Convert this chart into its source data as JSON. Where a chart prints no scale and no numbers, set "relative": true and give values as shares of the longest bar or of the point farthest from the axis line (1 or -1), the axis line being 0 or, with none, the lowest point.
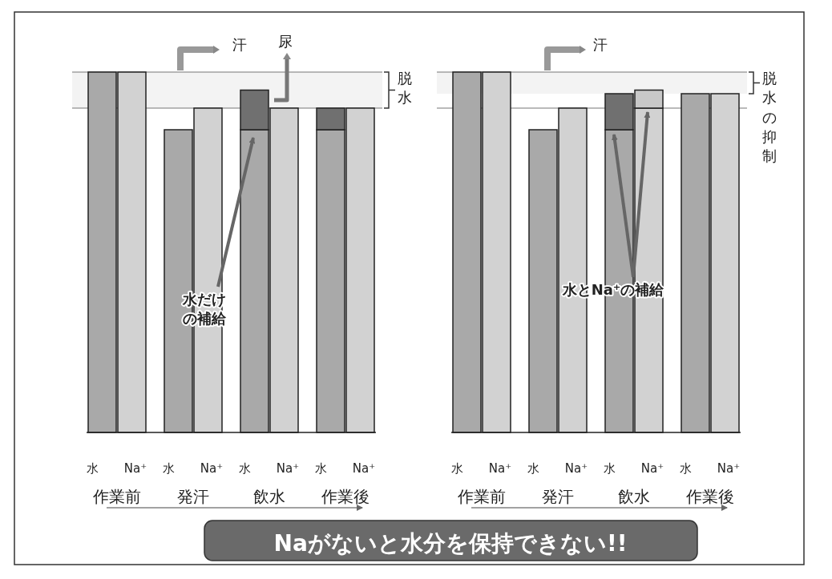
{
  "chart_data": [
    {
      "type": "bar",
      "relative": true,
      "stacked": true,
      "categories": [
        "水",
        "Na⁺",
        "水",
        "Na⁺",
        "水",
        "Na⁺",
        "水",
        "Na⁺"
      ],
      "series": [
        {
          "colors": [
            "#a9a9a9",
            "#d2d2d2",
            "#a9a9a9",
            "#d2d2d2",
            "#a9a9a9",
            "#d2d2d2",
            "#a9a9a9",
            "#d2d2d2"
          ],
          "values": [
            1,
            1,
            0.84,
            0.9,
            0.84,
            0.9,
            0.84,
            0.9
          ]
        },
        {
          "colors": [
            null,
            null,
            null,
            null,
            "#707070",
            null,
            "#707070",
            null
          ],
          "values": [
            null,
            null,
            null,
            null,
            0.11,
            null,
            0.06,
            null
          ]
        }
      ],
      "ref_lines": [
        {
          "axis": "y",
          "value": 1
        },
        {
          "axis": "y",
          "value": 0.9
        }
      ],
      "bands": [
        {
          "axis": "y",
          "from": 0.9,
          "to": 1,
          "label": "脱水"
        }
      ],
      "annotations": [
        "作業前",
        "発汗",
        "飲水",
        "作業後",
        "汗",
        "尿",
        "水だけの補給"
      ]
    },
    {
      "type": "bar",
      "relative": true,
      "stacked": true,
      "categories": [
        "水",
        "Na⁺",
        "水",
        "Na⁺",
        "水",
        "Na⁺",
        "水",
        "Na⁺"
      ],
      "series": [
        {
          "colors": [
            "#a9a9a9",
            "#d2d2d2",
            "#a9a9a9",
            "#d2d2d2",
            "#a9a9a9",
            "#d2d2d2",
            "#a9a9a9",
            "#d2d2d2"
          ],
          "values": [
            1,
            1,
            0.84,
            0.9,
            0.84,
            0.9,
            0.94,
            0.94
          ]
        },
        {
          "colors": [
            null,
            null,
            null,
            null,
            "#707070",
            "#c8c8c8",
            null,
            null
          ],
          "values": [
            null,
            null,
            null,
            null,
            0.1,
            0.05,
            null,
            null
          ]
        }
      ],
      "ref_lines": [
        {
          "axis": "y",
          "value": 1
        },
        {
          "axis": "y",
          "value": 0.9
        }
      ],
      "bands": [
        {
          "axis": "y",
          "from": 0.94,
          "to": 1,
          "label": "脱水の抑制"
        }
      ],
      "annotations": [
        "作業前",
        "発汗",
        "飲水",
        "作業後",
        "汗",
        "水とNa⁺の補給",
        "Naがないと水分を保持できない!!"
      ]
    }
  ]
}
